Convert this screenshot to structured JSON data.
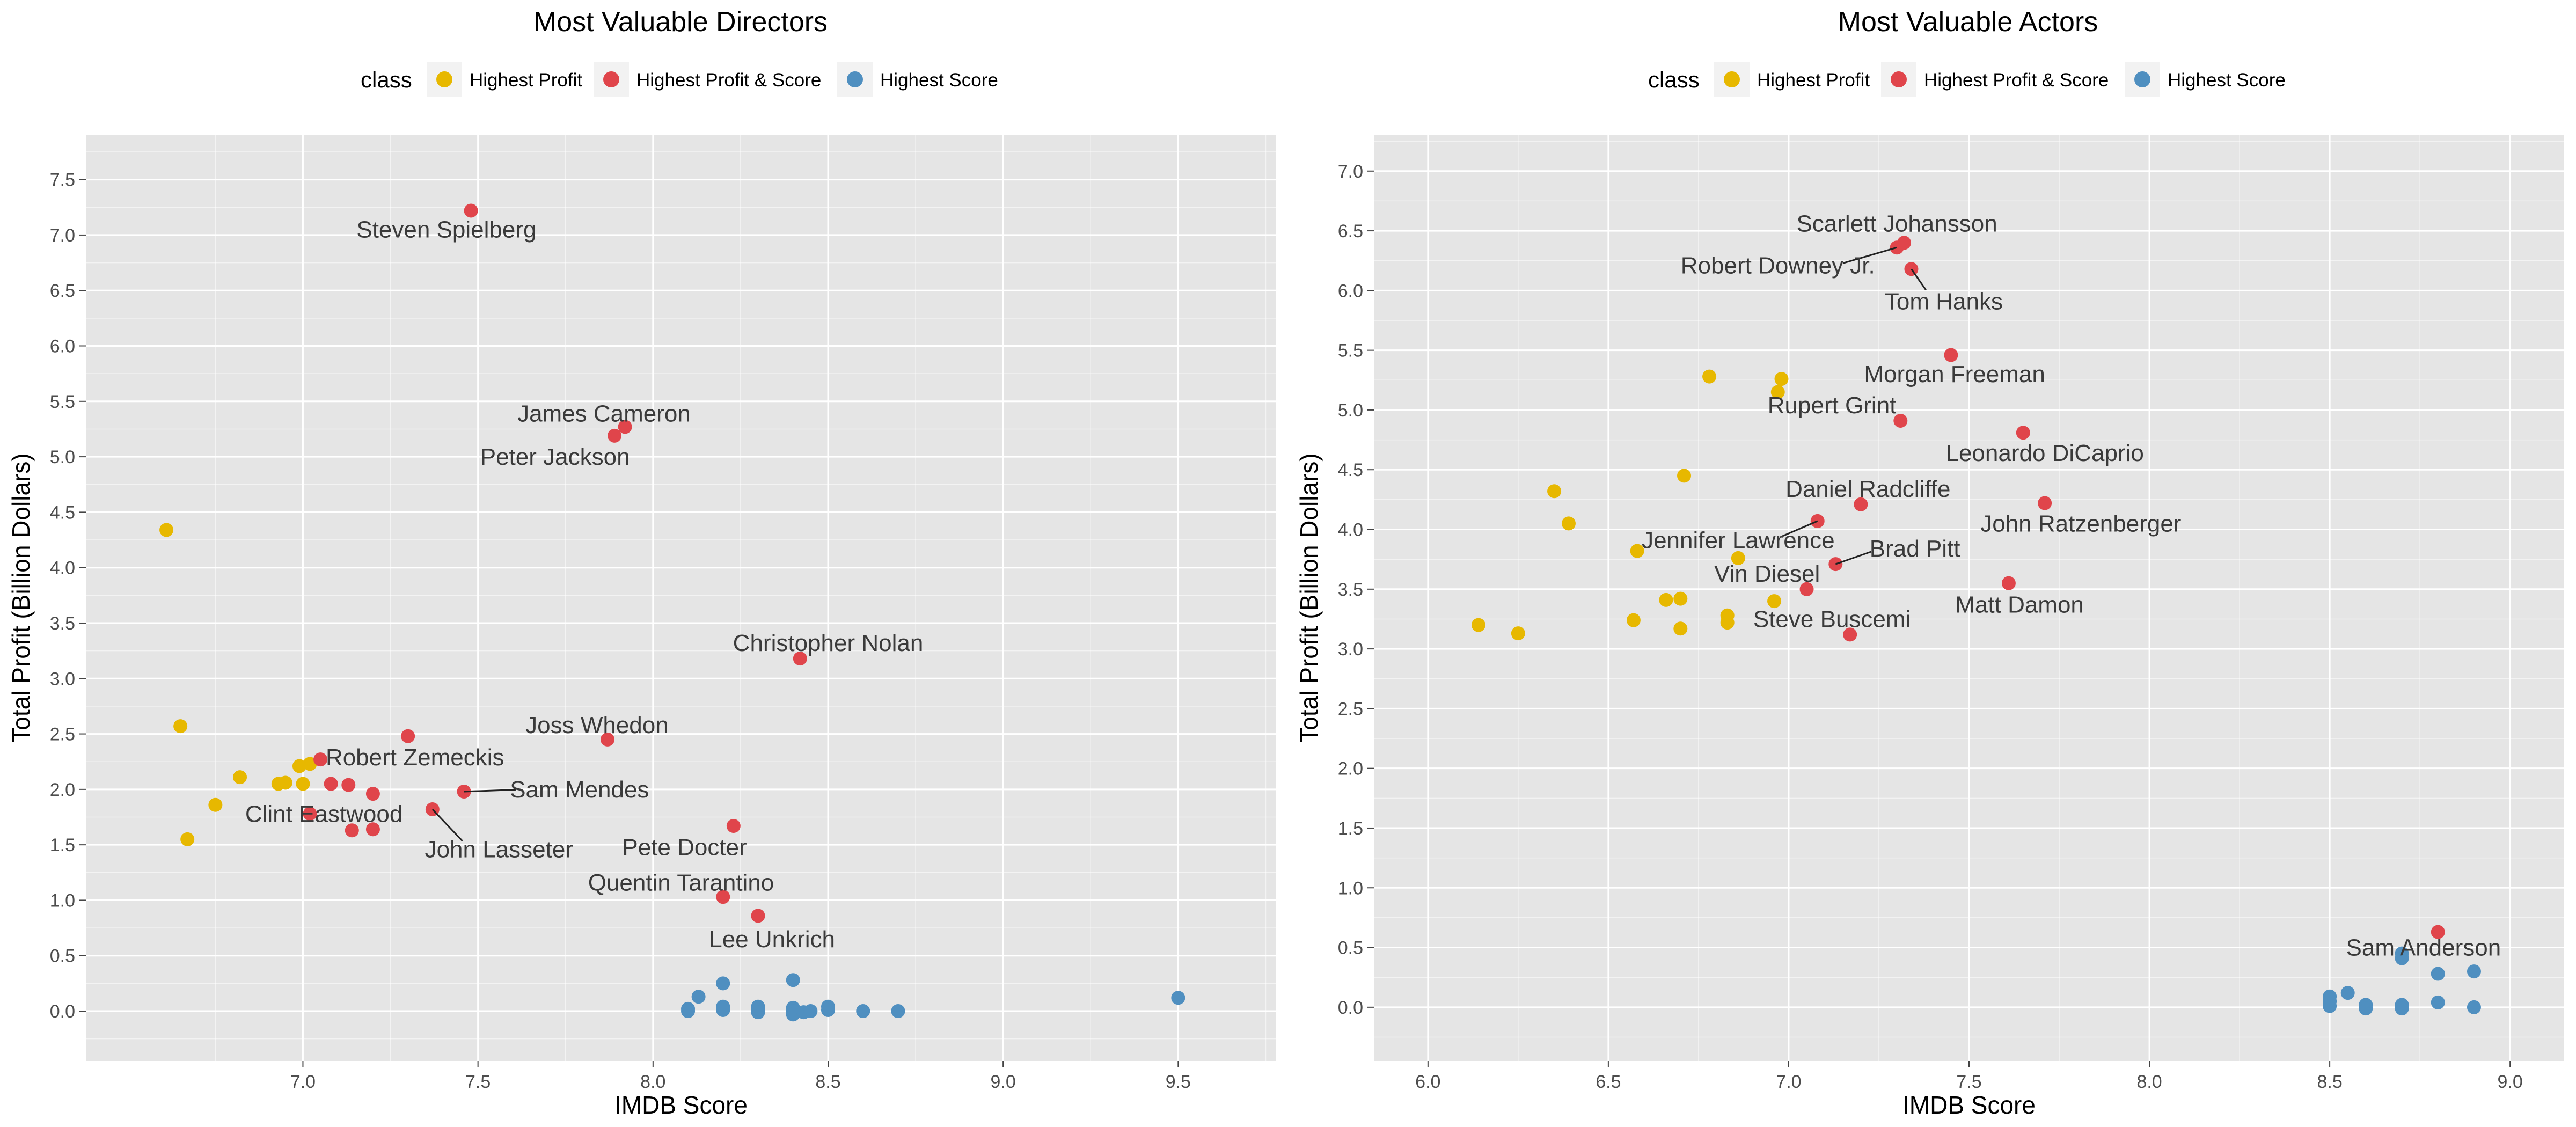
{
  "colors": {
    "panel_bg": "#E5E5E5",
    "grid": "#FFFFFF",
    "Highest Profit": "#E7B800",
    "Highest Profit & Score": "#E0454B",
    "Highest Score": "#4F8FC0",
    "label_text": "#3a3a3a"
  },
  "chart_data": [
    {
      "type": "scatter",
      "title": "Most Valuable Directors",
      "xlabel": "IMDB Score",
      "ylabel": "Total Profit (Billion Dollars)",
      "xlim": [
        6.38,
        9.78
      ],
      "ylim": [
        -0.45,
        7.9
      ],
      "x_ticks": [
        "7.0",
        "7.5",
        "8.0",
        "8.5",
        "9.0",
        "9.5"
      ],
      "y_ticks": [
        "0.0",
        "0.5",
        "1.0",
        "1.5",
        "2.0",
        "2.5",
        "3.0",
        "3.5",
        "4.0",
        "4.5",
        "5.0",
        "5.5",
        "6.0",
        "6.5",
        "7.0",
        "7.5"
      ],
      "legend": {
        "title": "class",
        "position": "top",
        "entries": [
          "Highest Profit",
          "Highest Profit & Score",
          "Highest Score"
        ]
      },
      "series": [
        {
          "name": "Highest Profit",
          "points": [
            [
              6.61,
              4.34
            ],
            [
              6.65,
              2.57
            ],
            [
              6.67,
              1.55
            ],
            [
              6.75,
              1.86
            ],
            [
              6.82,
              2.11
            ],
            [
              6.93,
              2.05
            ],
            [
              6.95,
              2.06
            ],
            [
              6.99,
              2.21
            ],
            [
              7.0,
              2.05
            ],
            [
              7.02,
              2.23
            ]
          ]
        },
        {
          "name": "Highest Profit & Score",
          "points": [
            [
              7.48,
              7.22
            ],
            [
              7.92,
              5.27
            ],
            [
              7.89,
              5.19
            ],
            [
              8.42,
              3.18
            ],
            [
              7.3,
              2.48
            ],
            [
              7.87,
              2.45
            ],
            [
              7.05,
              2.27
            ],
            [
              7.08,
              2.05
            ],
            [
              7.13,
              2.04
            ],
            [
              7.2,
              1.96
            ],
            [
              7.46,
              1.98
            ],
            [
              7.02,
              1.78
            ],
            [
              7.37,
              1.82
            ],
            [
              7.14,
              1.63
            ],
            [
              7.2,
              1.64
            ],
            [
              8.23,
              1.67
            ],
            [
              8.2,
              1.03
            ],
            [
              8.3,
              0.86
            ]
          ]
        },
        {
          "name": "Highest Score",
          "points": [
            [
              8.1,
              0.02
            ],
            [
              8.1,
              0.0
            ],
            [
              8.13,
              0.13
            ],
            [
              8.2,
              0.25
            ],
            [
              8.2,
              0.04
            ],
            [
              8.2,
              0.01
            ],
            [
              8.3,
              0.04
            ],
            [
              8.3,
              0.01
            ],
            [
              8.3,
              -0.01
            ],
            [
              8.4,
              0.28
            ],
            [
              8.4,
              0.03
            ],
            [
              8.4,
              0.0
            ],
            [
              8.4,
              -0.03
            ],
            [
              8.43,
              -0.01
            ],
            [
              8.45,
              0.0
            ],
            [
              8.5,
              0.04
            ],
            [
              8.5,
              0.01
            ],
            [
              8.6,
              0.0
            ],
            [
              8.7,
              0.0
            ],
            [
              9.5,
              0.12
            ]
          ]
        }
      ],
      "annotations": [
        {
          "text": "Steven Spielberg",
          "x": 7.48,
          "y": 7.22,
          "tx": 7.41,
          "ty": 7.05,
          "leader": false
        },
        {
          "text": "James Cameron",
          "x": 7.92,
          "y": 5.27,
          "tx": 7.86,
          "ty": 5.39,
          "leader": false
        },
        {
          "text": "Peter Jackson",
          "x": 7.89,
          "y": 5.19,
          "tx": 7.72,
          "ty": 5.0,
          "leader": false
        },
        {
          "text": "Christopher Nolan",
          "x": 8.42,
          "y": 3.18,
          "tx": 8.5,
          "ty": 3.32,
          "leader": false
        },
        {
          "text": "Joss Whedon",
          "x": 7.87,
          "y": 2.45,
          "tx": 7.84,
          "ty": 2.58,
          "leader": false
        },
        {
          "text": "Robert Zemeckis",
          "x": 7.05,
          "y": 2.27,
          "tx": 7.32,
          "ty": 2.29,
          "leader": false
        },
        {
          "text": "Sam Mendes",
          "x": 7.46,
          "y": 1.98,
          "tx": 7.79,
          "ty": 2.0,
          "leader": true
        },
        {
          "text": "Clint Eastwood",
          "x": 7.02,
          "y": 1.78,
          "tx": 7.06,
          "ty": 1.78,
          "leader": false
        },
        {
          "text": "John Lasseter",
          "x": 7.37,
          "y": 1.82,
          "tx": 7.56,
          "ty": 1.46,
          "leader": true
        },
        {
          "text": "Pete Docter",
          "x": 8.23,
          "y": 1.67,
          "tx": 8.09,
          "ty": 1.48,
          "leader": false
        },
        {
          "text": "Quentin Tarantino",
          "x": 8.2,
          "y": 1.03,
          "tx": 8.08,
          "ty": 1.16,
          "leader": false
        },
        {
          "text": "Lee Unkrich",
          "x": 8.3,
          "y": 0.86,
          "tx": 8.34,
          "ty": 0.65,
          "leader": false
        }
      ]
    },
    {
      "type": "scatter",
      "title": "Most Valuable Actors",
      "xlabel": "IMDB Score",
      "ylabel": "Total Profit (Billion Dollars)",
      "xlim": [
        5.85,
        9.15
      ],
      "ylim": [
        -0.45,
        7.3
      ],
      "x_ticks": [
        "6.0",
        "6.5",
        "7.0",
        "7.5",
        "8.0",
        "8.5",
        "9.0"
      ],
      "y_ticks": [
        "0.0",
        "0.5",
        "1.0",
        "1.5",
        "2.0",
        "2.5",
        "3.0",
        "3.5",
        "4.0",
        "4.5",
        "5.0",
        "5.5",
        "6.0",
        "6.5",
        "7.0"
      ],
      "legend": {
        "title": "class",
        "position": "top",
        "entries": [
          "Highest Profit",
          "Highest Profit & Score",
          "Highest Score"
        ]
      },
      "series": [
        {
          "name": "Highest Profit",
          "points": [
            [
              6.14,
              3.2
            ],
            [
              6.25,
              3.13
            ],
            [
              6.35,
              4.32
            ],
            [
              6.39,
              4.05
            ],
            [
              6.57,
              3.24
            ],
            [
              6.58,
              3.82
            ],
            [
              6.66,
              3.41
            ],
            [
              6.7,
              3.42
            ],
            [
              6.7,
              3.17
            ],
            [
              6.71,
              4.45
            ],
            [
              6.78,
              5.28
            ],
            [
              6.83,
              3.28
            ],
            [
              6.83,
              3.22
            ],
            [
              6.86,
              3.76
            ],
            [
              6.96,
              3.4
            ],
            [
              6.97,
              5.15
            ],
            [
              6.98,
              5.26
            ]
          ]
        },
        {
          "name": "Highest Profit & Score",
          "points": [
            [
              7.32,
              6.4
            ],
            [
              7.3,
              6.36
            ],
            [
              7.34,
              6.18
            ],
            [
              7.45,
              5.46
            ],
            [
              7.31,
              4.91
            ],
            [
              7.65,
              4.81
            ],
            [
              7.2,
              4.21
            ],
            [
              7.71,
              4.22
            ],
            [
              7.08,
              4.07
            ],
            [
              7.13,
              3.71
            ],
            [
              7.05,
              3.5
            ],
            [
              7.61,
              3.55
            ],
            [
              7.17,
              3.12
            ],
            [
              8.8,
              0.63
            ]
          ]
        },
        {
          "name": "Highest Score",
          "points": [
            [
              8.5,
              0.09
            ],
            [
              8.5,
              0.05
            ],
            [
              8.5,
              0.01
            ],
            [
              8.55,
              0.12
            ],
            [
              8.6,
              0.02
            ],
            [
              8.6,
              -0.01
            ],
            [
              8.7,
              0.45
            ],
            [
              8.7,
              0.41
            ],
            [
              8.7,
              0.02
            ],
            [
              8.7,
              -0.01
            ],
            [
              8.8,
              0.28
            ],
            [
              8.8,
              0.04
            ],
            [
              8.9,
              0.3
            ],
            [
              8.9,
              0.0
            ]
          ]
        }
      ],
      "annotations": [
        {
          "text": "Scarlett Johansson",
          "x": 7.32,
          "y": 6.4,
          "tx": 7.3,
          "ty": 6.56,
          "leader": false
        },
        {
          "text": "Robert Downey Jr.",
          "x": 7.3,
          "y": 6.36,
          "tx": 6.97,
          "ty": 6.21,
          "leader": true
        },
        {
          "text": "Tom Hanks",
          "x": 7.34,
          "y": 6.18,
          "tx": 7.43,
          "ty": 5.91,
          "leader": true
        },
        {
          "text": "Morgan Freeman",
          "x": 7.45,
          "y": 5.46,
          "tx": 7.46,
          "ty": 5.3,
          "leader": false
        },
        {
          "text": "Rupert Grint",
          "x": 7.31,
          "y": 4.91,
          "tx": 7.12,
          "ty": 5.04,
          "leader": false
        },
        {
          "text": "Leonardo DiCaprio",
          "x": 7.65,
          "y": 4.81,
          "tx": 7.71,
          "ty": 4.64,
          "leader": false
        },
        {
          "text": "Daniel Radcliffe",
          "x": 7.2,
          "y": 4.21,
          "tx": 7.22,
          "ty": 4.34,
          "leader": false
        },
        {
          "text": "John Ratzenberger",
          "x": 7.71,
          "y": 4.22,
          "tx": 7.81,
          "ty": 4.05,
          "leader": false
        },
        {
          "text": "Jennifer Lawrence",
          "x": 7.08,
          "y": 4.07,
          "tx": 6.86,
          "ty": 3.91,
          "leader": true
        },
        {
          "text": "Brad Pitt",
          "x": 7.13,
          "y": 3.71,
          "tx": 7.35,
          "ty": 3.84,
          "leader": true
        },
        {
          "text": "Vin Diesel",
          "x": 7.05,
          "y": 3.5,
          "tx": 6.94,
          "ty": 3.63,
          "leader": false
        },
        {
          "text": "Matt Damon",
          "x": 7.61,
          "y": 3.55,
          "tx": 7.64,
          "ty": 3.37,
          "leader": false
        },
        {
          "text": "Steve Buscemi",
          "x": 7.17,
          "y": 3.12,
          "tx": 7.12,
          "ty": 3.25,
          "leader": false
        },
        {
          "text": "Sam Anderson",
          "x": 8.8,
          "y": 0.63,
          "tx": 8.76,
          "ty": 0.5,
          "leader": false
        }
      ]
    }
  ]
}
